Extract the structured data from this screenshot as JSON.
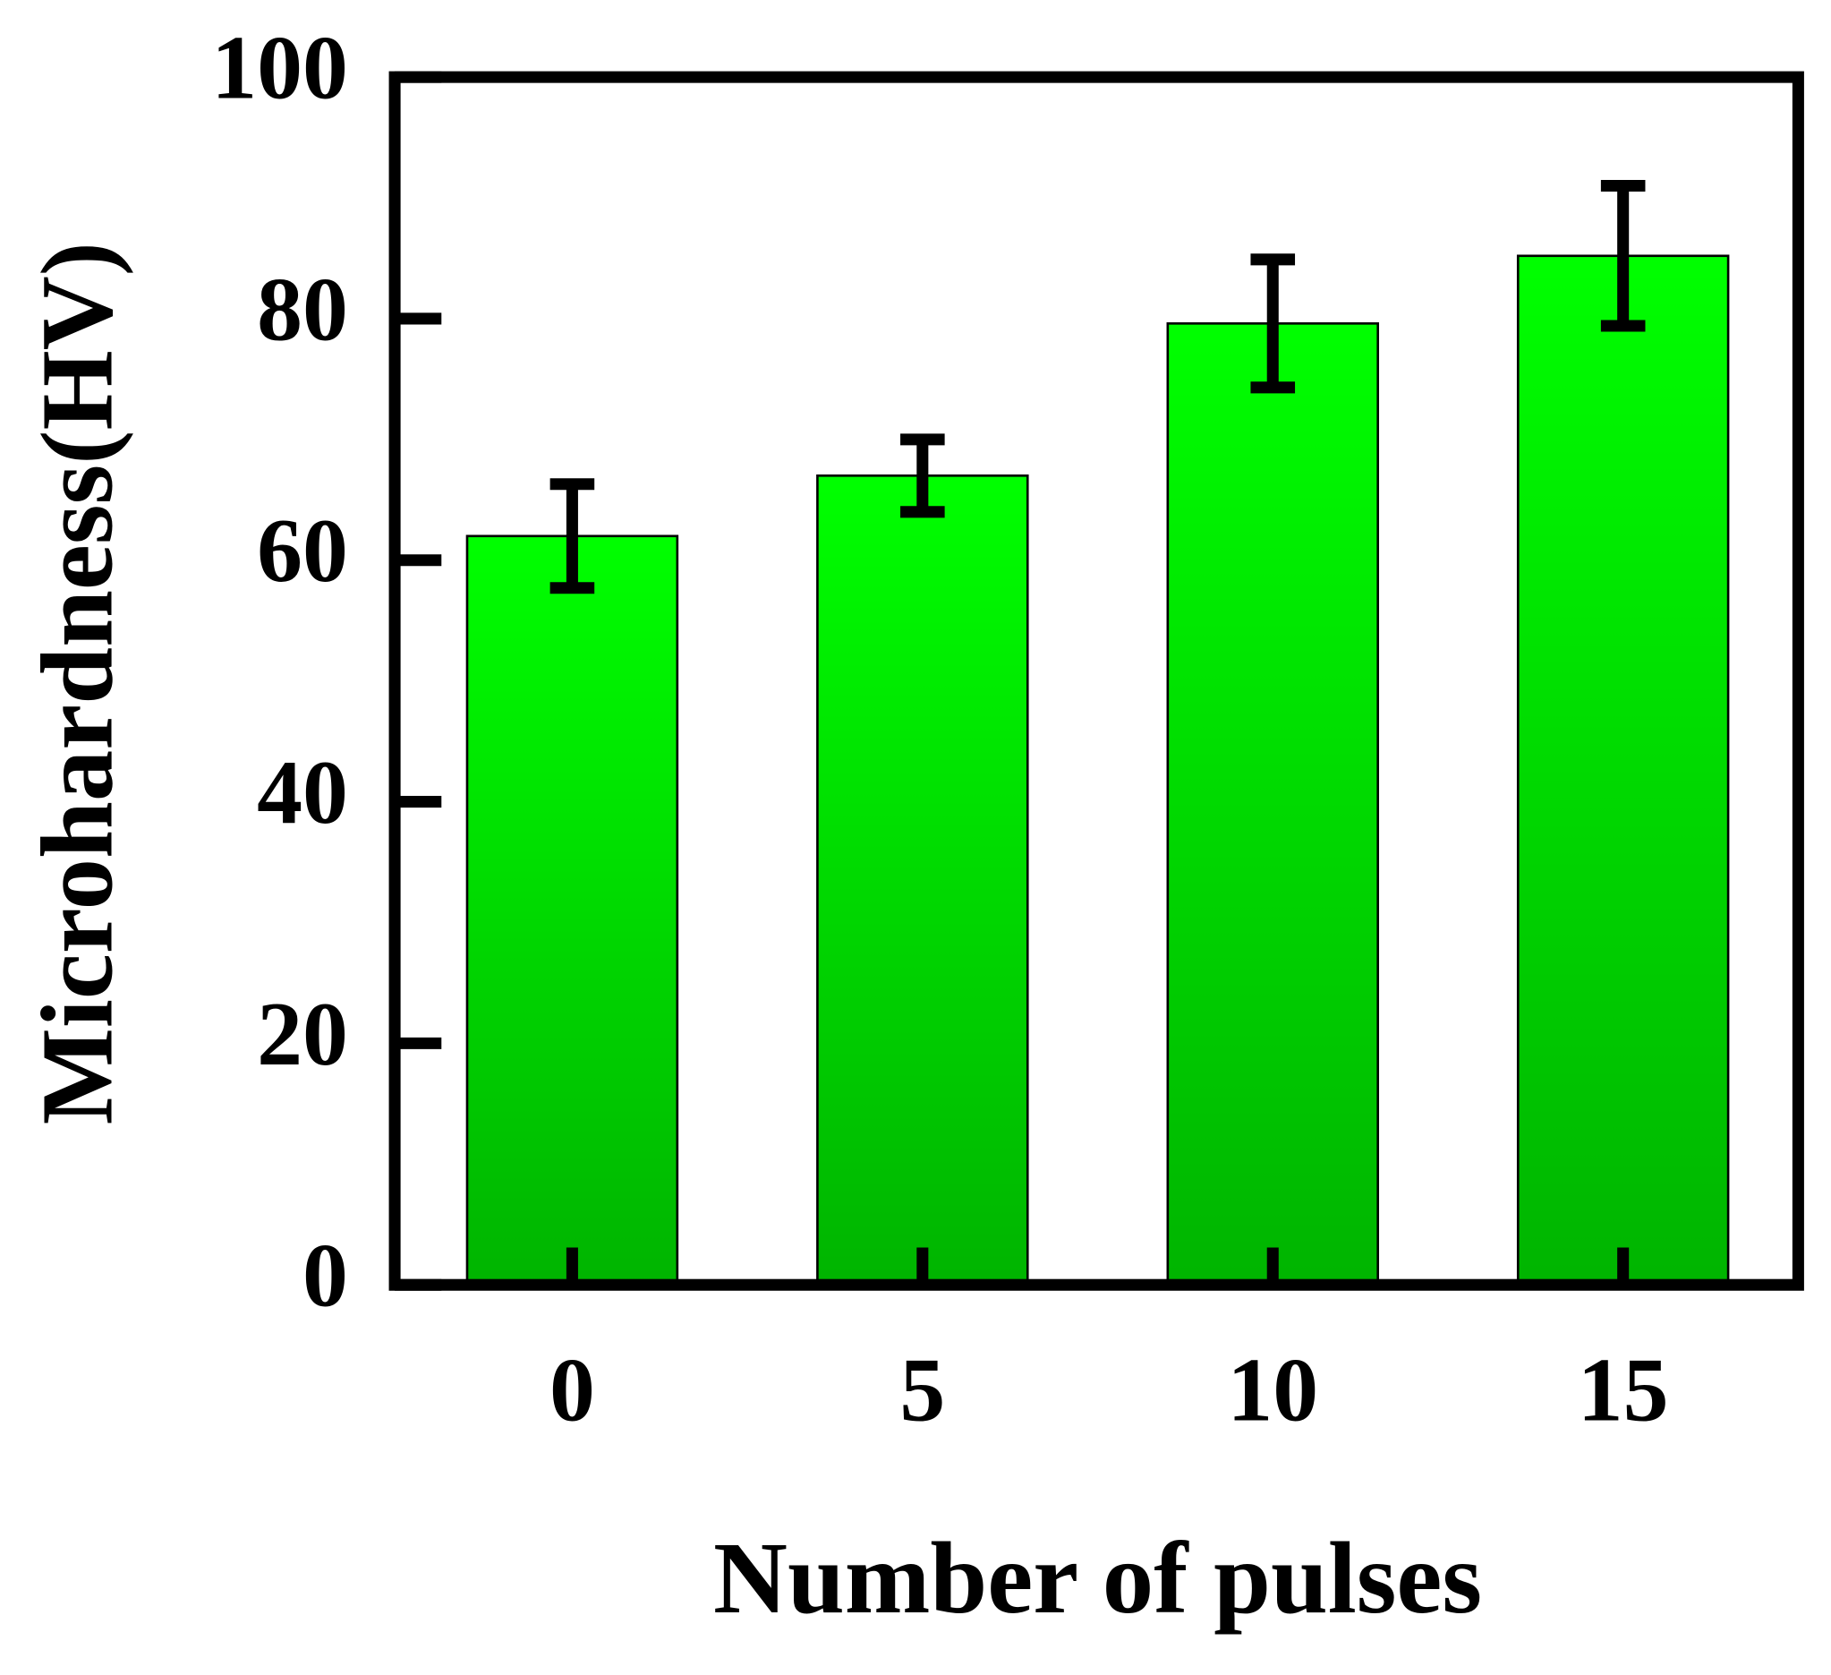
{
  "chart_data": {
    "type": "bar",
    "x_label": "Number of pulses",
    "y_label": "Microhardness(HV)",
    "categories": [
      "0",
      "5",
      "10",
      "15"
    ],
    "values": [
      62,
      67,
      79.6,
      85.2
    ],
    "errors": [
      4.3,
      3,
      5.3,
      5.8
    ],
    "ylim": [
      0,
      100
    ],
    "yticks": [
      0,
      20,
      40,
      60,
      80,
      100
    ]
  }
}
